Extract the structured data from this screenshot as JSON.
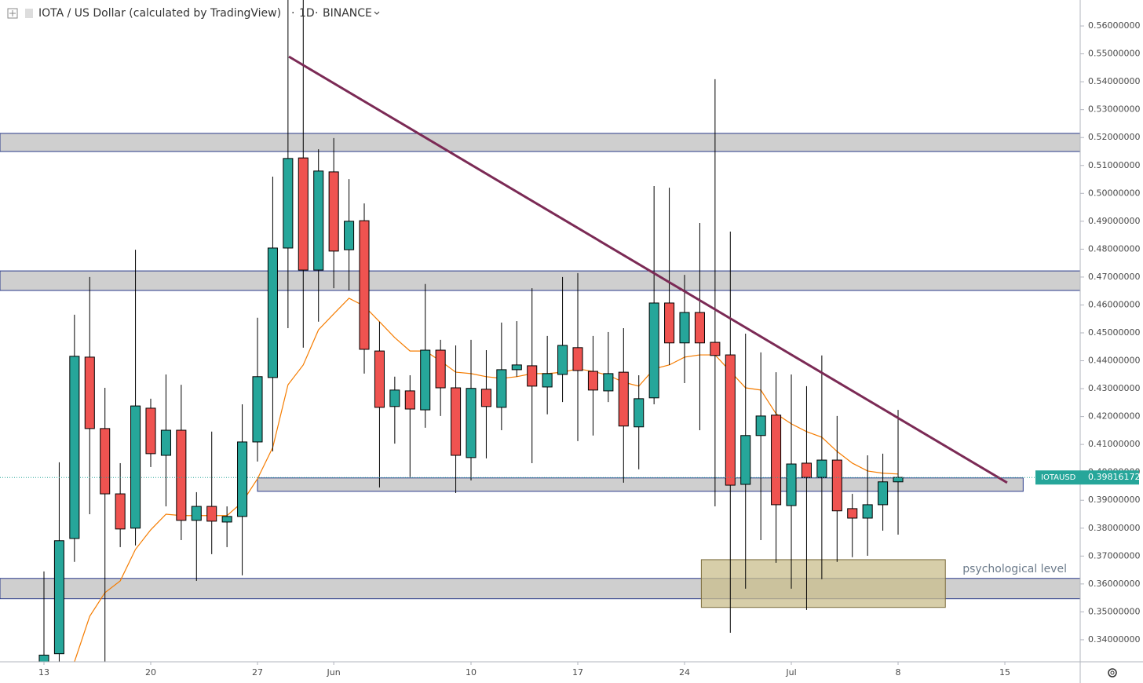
{
  "chart_data": {
    "type": "candlestick",
    "title": "IOTA / US Dollar (calculated by TradingView)",
    "interval": "1D",
    "exchange": "BINANCE",
    "symbol": "IOTAUSD",
    "last_price": 0.39816172,
    "up_color": "#26a69a",
    "down_color": "#ef5350",
    "x": [
      0,
      1,
      2,
      3,
      4,
      5,
      6,
      7,
      8,
      9,
      10,
      11,
      12,
      13,
      14,
      15,
      16,
      17,
      18,
      19,
      20,
      21,
      22,
      23,
      24,
      25,
      26,
      27,
      28,
      29,
      30,
      31,
      32,
      33,
      34,
      35,
      36,
      37,
      38,
      39,
      40,
      41,
      42,
      43,
      44,
      45,
      46,
      47,
      48,
      49,
      50,
      51,
      52,
      53,
      54,
      55,
      56
    ],
    "open": [
      0.332,
      0.335,
      0.3763,
      0.4413,
      0.4157,
      0.3923,
      0.38,
      0.423,
      0.4061,
      0.4151,
      0.3828,
      0.3878,
      0.3822,
      0.3842,
      0.4109,
      0.434,
      0.4804,
      0.5127,
      0.4725,
      0.5077,
      0.4798,
      0.4902,
      0.4435,
      0.4236,
      0.4292,
      0.4224,
      0.4438,
      0.4303,
      0.4053,
      0.4298,
      0.4233,
      0.4368,
      0.4382,
      0.4306,
      0.4351,
      0.4447,
      0.4362,
      0.4292,
      0.4359,
      0.4163,
      0.4267,
      0.4607,
      0.4464,
      0.4573,
      0.4466,
      0.4421,
      0.3957,
      0.4132,
      0.4205,
      0.3881,
      0.4033,
      0.3982,
      0.4044,
      0.387,
      0.3836,
      0.3884,
      0.3966
    ],
    "high": [
      0.3645,
      0.4036,
      0.4565,
      0.47,
      0.4303,
      0.4033,
      0.4798,
      0.4264,
      0.4351,
      0.4314,
      0.3929,
      0.4146,
      0.3878,
      0.4244,
      0.4554,
      0.506,
      0.575,
      0.575,
      0.5158,
      0.5198,
      0.5051,
      0.4964,
      0.454,
      0.4343,
      0.4348,
      0.4675,
      0.4475,
      0.4455,
      0.4475,
      0.4438,
      0.4537,
      0.4542,
      0.466,
      0.4489,
      0.47,
      0.4714,
      0.4489,
      0.4503,
      0.4517,
      0.4348,
      0.5026,
      0.502,
      0.4708,
      0.4894,
      0.5409,
      0.4863,
      0.4497,
      0.443,
      0.4359,
      0.4351,
      0.4309,
      0.4419,
      0.4202,
      0.3923,
      0.4061,
      0.4067,
      0.4224
    ],
    "low": [
      0.325,
      0.33,
      0.3679,
      0.385,
      0.3316,
      0.3732,
      0.3738,
      0.4019,
      0.3878,
      0.3757,
      0.3611,
      0.3707,
      0.3732,
      0.3631,
      0.4039,
      0.4075,
      0.4517,
      0.4447,
      0.454,
      0.466,
      0.4652,
      0.4354,
      0.3946,
      0.4103,
      0.3983,
      0.416,
      0.4202,
      0.3926,
      0.3971,
      0.405,
      0.4151,
      0.4343,
      0.4033,
      0.4208,
      0.4252,
      0.4112,
      0.4132,
      0.4252,
      0.3963,
      0.4011,
      0.4244,
      0.4385,
      0.432,
      0.4151,
      0.3878,
      0.3425,
      0.3583,
      0.3757,
      0.3676,
      0.3583,
      0.3507,
      0.3617,
      0.3679,
      0.3696,
      0.3701,
      0.3791,
      0.3777
    ],
    "close": [
      0.3345,
      0.3755,
      0.4416,
      0.4157,
      0.3923,
      0.3797,
      0.4238,
      0.4067,
      0.4151,
      0.3828,
      0.3878,
      0.3825,
      0.3842,
      0.4109,
      0.4343,
      0.4804,
      0.5125,
      0.4725,
      0.508,
      0.4793,
      0.49,
      0.4441,
      0.4233,
      0.4295,
      0.4227,
      0.4438,
      0.4303,
      0.4061,
      0.4301,
      0.4236,
      0.4368,
      0.4385,
      0.4309,
      0.4354,
      0.4455,
      0.4365,
      0.4295,
      0.4354,
      0.4166,
      0.4264,
      0.4607,
      0.4464,
      0.4573,
      0.4464,
      0.4419,
      0.3954,
      0.4132,
      0.4202,
      0.3884,
      0.403,
      0.3982,
      0.4044,
      0.3862,
      0.3836,
      0.3884,
      0.3966,
      0.3982
    ],
    "ma": {
      "color": "#f57c00",
      "values": [
        null,
        null,
        0.3321,
        0.3484,
        0.3569,
        0.3611,
        0.3724,
        0.3794,
        0.385,
        0.3845,
        0.3845,
        0.3845,
        0.3845,
        0.3893,
        0.3977,
        0.4089,
        0.4314,
        0.4385,
        0.4511,
        0.4568,
        0.4624,
        0.4596,
        0.454,
        0.4483,
        0.4435,
        0.4435,
        0.4399,
        0.4359,
        0.4354,
        0.4343,
        0.4337,
        0.4343,
        0.4354,
        0.4354,
        0.4359,
        0.4371,
        0.4362,
        0.4348,
        0.4323,
        0.4309,
        0.4371,
        0.4385,
        0.4413,
        0.4421,
        0.4421,
        0.4362,
        0.4303,
        0.4295,
        0.421,
        0.4174,
        0.4146,
        0.4126,
        0.4075,
        0.4033,
        0.4005,
        0.3997,
        0.3994
      ]
    },
    "zones": [
      {
        "y": [
          0.515,
          0.5215
        ],
        "color": "#cfcfcf"
      },
      {
        "y": [
          0.4652,
          0.4722
        ],
        "color": "#cfcfcf"
      },
      {
        "y": [
          0.3547,
          0.362
        ],
        "color": "#cfcfcf"
      },
      {
        "x": [
          14,
          64.2
        ],
        "y": [
          0.3932,
          0.398
        ],
        "color": "#cfcfcf"
      },
      {
        "x": [
          43.1,
          59.1
        ],
        "y": [
          0.3516,
          0.3687
        ],
        "color": "#c9bd8c",
        "label": "psychological level"
      }
    ],
    "trendline": {
      "x": [
        16.06,
        63.15
      ],
      "y": [
        0.549,
        0.3963
      ],
      "color": "#7b2a55"
    },
    "xlim": [
      -2.882,
      67.94
    ],
    "xticks": [
      {
        "value": 0,
        "label": "13"
      },
      {
        "value": 7,
        "label": "20"
      },
      {
        "value": 14,
        "label": "27"
      },
      {
        "value": 19,
        "label": "Jun"
      },
      {
        "value": 28,
        "label": "10"
      },
      {
        "value": 35,
        "label": "17"
      },
      {
        "value": 42,
        "label": "24"
      },
      {
        "value": 49,
        "label": "Jul"
      },
      {
        "value": 56,
        "label": "8"
      },
      {
        "value": 63,
        "label": "15"
      }
    ],
    "ylim": [
      0.3321,
      0.5693
    ],
    "yticks": [
      {
        "value": 0.34,
        "label": "0.34000000"
      },
      {
        "value": 0.35,
        "label": "0.35000000"
      },
      {
        "value": 0.36,
        "label": "0.36000000"
      },
      {
        "value": 0.37,
        "label": "0.37000000"
      },
      {
        "value": 0.38,
        "label": "0.38000000"
      },
      {
        "value": 0.39,
        "label": "0.39000000"
      },
      {
        "value": 0.4,
        "label": "0.40000000"
      },
      {
        "value": 0.41,
        "label": "0.41000000"
      },
      {
        "value": 0.42,
        "label": "0.42000000"
      },
      {
        "value": 0.43,
        "label": "0.43000000"
      },
      {
        "value": 0.44,
        "label": "0.44000000"
      },
      {
        "value": 0.45,
        "label": "0.45000000"
      },
      {
        "value": 0.46,
        "label": "0.46000000"
      },
      {
        "value": 0.47,
        "label": "0.47000000"
      },
      {
        "value": 0.48,
        "label": "0.48000000"
      },
      {
        "value": 0.49,
        "label": "0.49000000"
      },
      {
        "value": 0.5,
        "label": "0.50000000"
      },
      {
        "value": 0.51,
        "label": "0.51000000"
      },
      {
        "value": 0.52,
        "label": "0.52000000"
      },
      {
        "value": 0.53,
        "label": "0.53000000"
      },
      {
        "value": 0.54,
        "label": "0.54000000"
      },
      {
        "value": 0.55,
        "label": "0.55000000"
      },
      {
        "value": 0.56,
        "label": "0.56000000"
      }
    ]
  }
}
